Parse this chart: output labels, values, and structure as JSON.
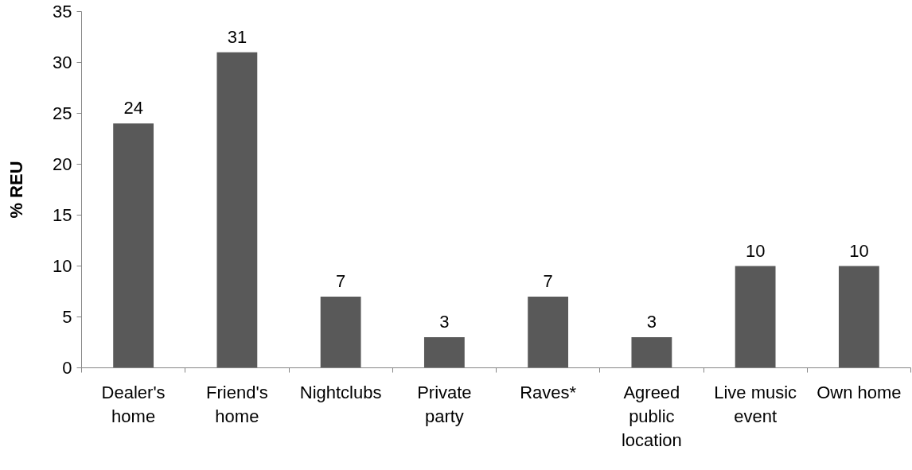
{
  "chart_data": {
    "type": "bar",
    "ylabel": "% REU",
    "categories": [
      "Dealer's home",
      "Friend's home",
      "Nightclubs",
      "Private party",
      "Raves*",
      "Agreed public location",
      "Live music event",
      "Own home"
    ],
    "values": [
      24,
      31,
      7,
      3,
      7,
      3,
      10,
      10
    ],
    "color": "#595959",
    "ylim": [
      0,
      35
    ],
    "yticks": [
      0,
      5,
      10,
      15,
      20,
      25,
      30,
      35
    ],
    "grid": false,
    "data_labels": true
  }
}
